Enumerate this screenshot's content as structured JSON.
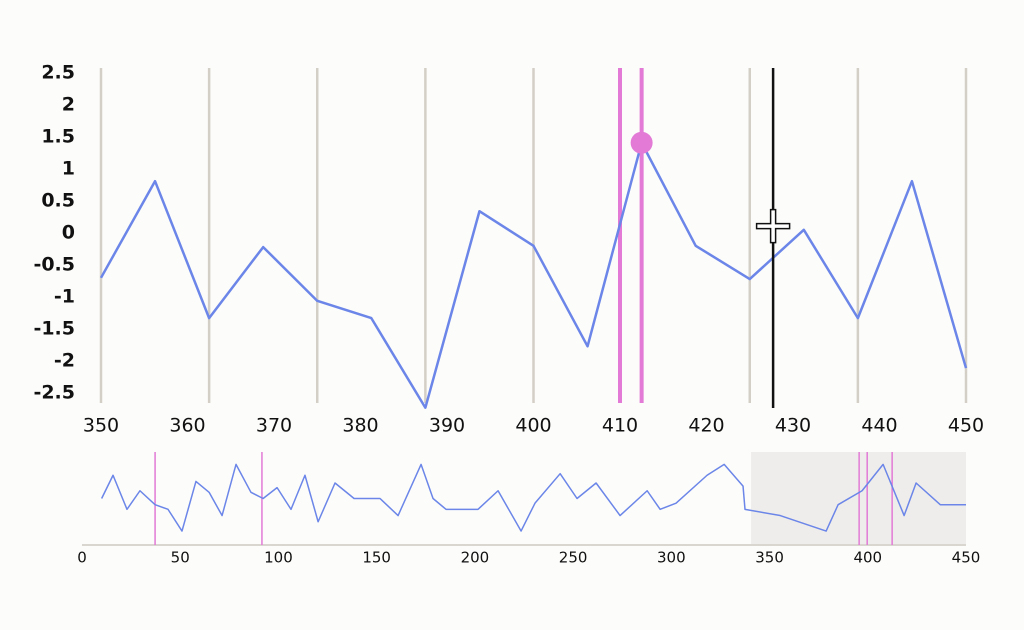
{
  "chart_data": [
    {
      "type": "line",
      "color": "#6b86e8",
      "x": [
        350,
        356.25,
        362.5,
        368.75,
        375,
        381.25,
        387.5,
        393.75,
        400,
        406.25,
        412.5,
        418.75,
        425,
        431.25,
        437.5,
        443.75,
        450
      ],
      "values": [
        -0.7,
        0.81,
        -1.33,
        -0.22,
        -1.06,
        -1.33,
        -2.73,
        0.34,
        -0.2,
        -1.77,
        1.41,
        -0.2,
        -0.72,
        0.05,
        -1.33,
        0.81,
        -2.11
      ],
      "xlim": [
        350,
        450
      ],
      "xticks": [
        350,
        360,
        370,
        380,
        390,
        400,
        410,
        420,
        430,
        440,
        450
      ],
      "ylim": [
        -2.75,
        2.75
      ],
      "yticks": [
        2.5,
        2.0,
        1.5,
        1.0,
        0.5,
        0.0,
        -0.5,
        -1.0,
        -1.5,
        -2.0,
        -2.5
      ],
      "xgrid": [
        350,
        362.5,
        375,
        387.5,
        400,
        412.5,
        425,
        437.5,
        450
      ],
      "grid_color": "#d4cfc6",
      "highlights": [
        410,
        412.5
      ],
      "highlight_color": "#e27ad6",
      "marker_index": 10,
      "cursor": {
        "x": 427.7,
        "y": 0.1
      }
    },
    {
      "type": "line",
      "color": "#6b86e8",
      "x": [
        10,
        15.8,
        22.9,
        29.5,
        37.2,
        43.8,
        50.9,
        58,
        64.7,
        71.3,
        78.4,
        86,
        92.2,
        99.3,
        106.4,
        113.5,
        120.2,
        128.8,
        138.5,
        151.7,
        160.9,
        172.6,
        178.7,
        185.3,
        201.6,
        211.8,
        223.5,
        230.6,
        243.4,
        252,
        261.7,
        273.9,
        287.7,
        294.3,
        302.4,
        318.2,
        326.9,
        336.5,
        337.5,
        355.4,
        378.8,
        384.9,
        397.1,
        407.8,
        418.5,
        424.6,
        436.9,
        450
      ],
      "values": [
        0.0,
        1.5,
        -0.7,
        0.5,
        -0.4,
        -0.7,
        -2.1,
        1.1,
        0.4,
        -1.1,
        2.2,
        0.4,
        0.0,
        0.7,
        -0.7,
        1.5,
        -1.5,
        1.0,
        0.0,
        0.0,
        -1.1,
        2.2,
        0.0,
        -0.7,
        -0.7,
        0.5,
        -2.1,
        -0.3,
        1.6,
        0.0,
        1.0,
        -1.1,
        0.5,
        -0.7,
        -0.3,
        1.5,
        2.2,
        0.8,
        -0.7,
        -1.1,
        -2.1,
        -0.4,
        0.5,
        2.2,
        -1.1,
        1.0,
        -0.4,
        -0.4
      ],
      "xlim": [
        0,
        450
      ],
      "xticks": [
        0,
        50,
        100,
        150,
        200,
        250,
        300,
        350,
        400,
        450
      ],
      "ylim": [
        -3,
        3
      ],
      "highlights": [
        37.2,
        91.6,
        395.6,
        399.7,
        412.4
      ],
      "highlight_color": "#e27ad6",
      "brush": [
        340.6,
        450
      ],
      "brush_color": "#efedeb"
    }
  ]
}
